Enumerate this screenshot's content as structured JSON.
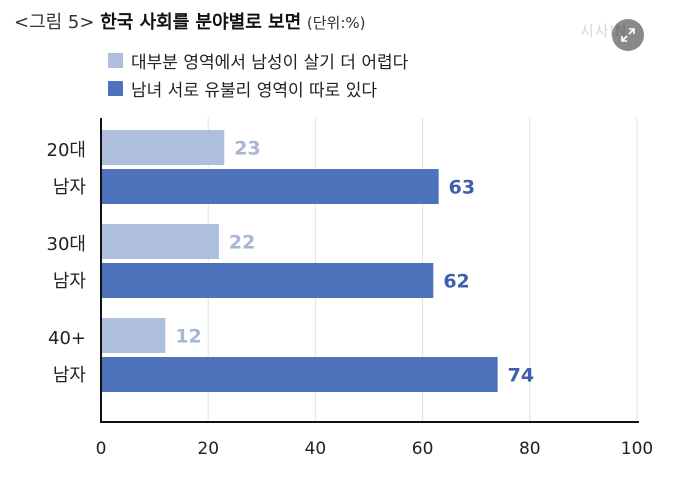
{
  "title": {
    "prefix": "<그림 5>",
    "main": "한국 사회를 분야별로 보면",
    "unit": "(단위:%)"
  },
  "watermark": "시사IN",
  "expand_button": {
    "icon": "expand-icon"
  },
  "colors": {
    "series1": "#adbfdc",
    "series2": "#4f72bd",
    "label1": "#a6b6d3",
    "label2": "#3f5fae",
    "axis": "#111111",
    "grid": "#e2e2e2"
  },
  "chart_data": {
    "type": "bar",
    "orientation": "horizontal",
    "categories": [
      [
        "20대",
        "남자"
      ],
      [
        "30대",
        "남자"
      ],
      [
        "40+",
        "남자"
      ]
    ],
    "series": [
      {
        "name": "대부분 영역에서 남성이 살기  더 어렵다",
        "values": [
          23,
          22,
          12
        ]
      },
      {
        "name": "남녀 서로 유불리 영역이 따로 있다",
        "values": [
          63,
          62,
          74
        ]
      }
    ],
    "xlim": [
      0,
      100
    ],
    "xticks": [
      0,
      20,
      40,
      60,
      80,
      100
    ],
    "grid": true,
    "legend_position": "top-left"
  }
}
